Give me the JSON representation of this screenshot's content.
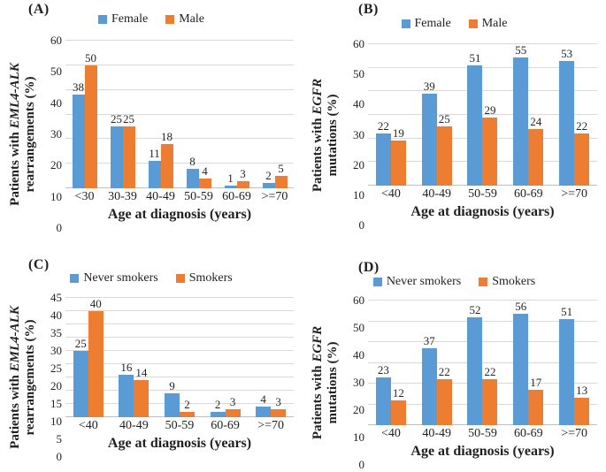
{
  "figure": {
    "background": "#ffffff",
    "series_colors": {
      "blue": "#5B9BD5",
      "orange": "#ED7D31"
    },
    "gridline_color": "#d9d9d9",
    "axis_line_color": "#bfbfbf"
  },
  "chart_data": [
    {
      "type": "bar",
      "panel_label": "(A)",
      "categories": [
        "<30",
        "30-39",
        "40-49",
        "50-59",
        "60-69",
        ">=70"
      ],
      "series": [
        {
          "name": "Female",
          "color": "#5B9BD5",
          "values": [
            38,
            25,
            11,
            8,
            1,
            2
          ]
        },
        {
          "name": "Male",
          "color": "#ED7D31",
          "values": [
            50,
            25,
            18,
            4,
            3,
            5
          ]
        }
      ],
      "ylabel_lines": [
        "Patients with EML4-ALK",
        "rearrangements (%)"
      ],
      "ylabel_italic": "EML4-ALK",
      "xlabel": "Age at diagnosis (years)",
      "ylim": [
        0,
        60
      ],
      "ytick_step": 10,
      "grid": true,
      "legend_position": "top",
      "data_labels": true
    },
    {
      "type": "bar",
      "panel_label": "(B)",
      "categories": [
        "<40",
        "40-49",
        "50-59",
        "60-69",
        ">=70"
      ],
      "series": [
        {
          "name": "Female",
          "color": "#5B9BD5",
          "values": [
            22,
            39,
            51,
            55,
            53
          ]
        },
        {
          "name": "Male",
          "color": "#ED7D31",
          "values": [
            19,
            25,
            29,
            24,
            22
          ]
        }
      ],
      "ylabel_lines": [
        "Patients with EGFR",
        "mutations (%)"
      ],
      "ylabel_italic": "EGFR",
      "xlabel": "Age at diagnosis (years)",
      "ylim": [
        0,
        60
      ],
      "ytick_step": 10,
      "grid": true,
      "legend_position": "top",
      "data_labels": true
    },
    {
      "type": "bar",
      "panel_label": "(C)",
      "categories": [
        "<40",
        "40-49",
        "50-59",
        "60-69",
        ">=70"
      ],
      "series": [
        {
          "name": "Never smokers",
          "color": "#5B9BD5",
          "values": [
            25,
            16,
            9,
            2,
            4
          ]
        },
        {
          "name": "Smokers",
          "color": "#ED7D31",
          "values": [
            40,
            14,
            2,
            3,
            3
          ]
        }
      ],
      "ylabel_lines": [
        "Patients with EML4-ALK",
        "rearrangements (%)"
      ],
      "ylabel_italic": "EML4-ALK",
      "xlabel": "Age at diagnosis (years)",
      "ylim": [
        0,
        45
      ],
      "ytick_step": 5,
      "grid": true,
      "legend_position": "top",
      "data_labels": true
    },
    {
      "type": "bar",
      "panel_label": "(D)",
      "categories": [
        "<40",
        "40-49",
        "50-59",
        "60-69",
        ">=70"
      ],
      "series": [
        {
          "name": "Never smokers",
          "color": "#5B9BD5",
          "values": [
            23,
            37,
            52,
            56,
            51
          ]
        },
        {
          "name": "Smokers",
          "color": "#ED7D31",
          "values": [
            12,
            22,
            22,
            17,
            13
          ]
        }
      ],
      "ylabel_lines": [
        "Patients with EGFR",
        "mutations (%)"
      ],
      "ylabel_italic": "EGFR",
      "xlabel": "Age at diagnosis (years)",
      "ylim": [
        0,
        60
      ],
      "ytick_step": 10,
      "grid": true,
      "legend_position": "top",
      "data_labels": true
    }
  ]
}
